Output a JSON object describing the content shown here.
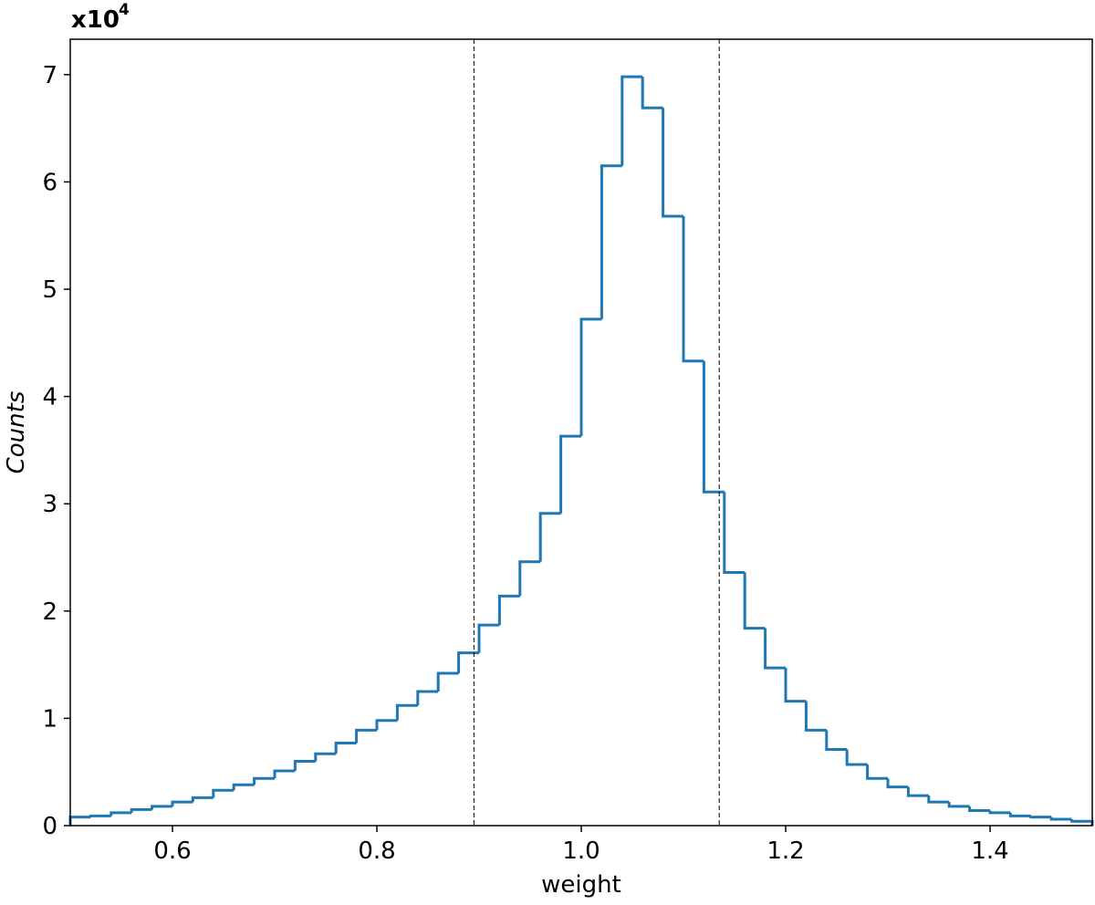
{
  "chart_data": {
    "type": "histogram",
    "x_label": "weight",
    "y_label": "Counts",
    "y_scale_label": {
      "base": "x10",
      "exponent": "4"
    },
    "color": "#1f77b4",
    "bins": [
      0.5,
      0.52,
      0.54,
      0.56,
      0.58,
      0.6,
      0.62,
      0.64,
      0.66,
      0.68,
      0.7,
      0.72,
      0.74,
      0.76,
      0.78,
      0.8,
      0.82,
      0.84,
      0.86,
      0.88,
      0.9,
      0.92,
      0.94,
      0.96,
      0.98,
      1,
      1.02,
      1.04,
      1.06,
      1.08,
      1.1,
      1.12,
      1.14,
      1.16,
      1.18,
      1.2,
      1.22,
      1.24,
      1.26,
      1.28,
      1.3,
      1.32,
      1.34,
      1.36,
      1.38,
      1.4,
      1.42,
      1.44,
      1.46,
      1.48,
      1.5
    ],
    "values": [
      0.08,
      0.09,
      0.12,
      0.15,
      0.18,
      0.22,
      0.26,
      0.33,
      0.38,
      0.44,
      0.51,
      0.6,
      0.67,
      0.77,
      0.89,
      0.98,
      1.12,
      1.25,
      1.42,
      1.61,
      1.87,
      2.14,
      2.46,
      2.91,
      3.63,
      4.72,
      6.15,
      6.98,
      6.69,
      5.68,
      4.33,
      3.11,
      2.36,
      1.84,
      1.47,
      1.16,
      0.89,
      0.71,
      0.57,
      0.44,
      0.36,
      0.28,
      0.22,
      0.18,
      0.14,
      0.12,
      0.09,
      0.08,
      0.06,
      0.04
    ],
    "vlines": [
      0.895,
      1.135
    ],
    "xlim": [
      0.5,
      1.5
    ],
    "ylim": [
      0,
      7.33
    ],
    "xticks": [
      0.6,
      0.8,
      {
        "value": 1,
        "label": "1.0"
      },
      1.2,
      1.4
    ],
    "yticks": [
      0,
      1,
      2,
      3,
      4,
      5,
      6,
      7
    ]
  }
}
